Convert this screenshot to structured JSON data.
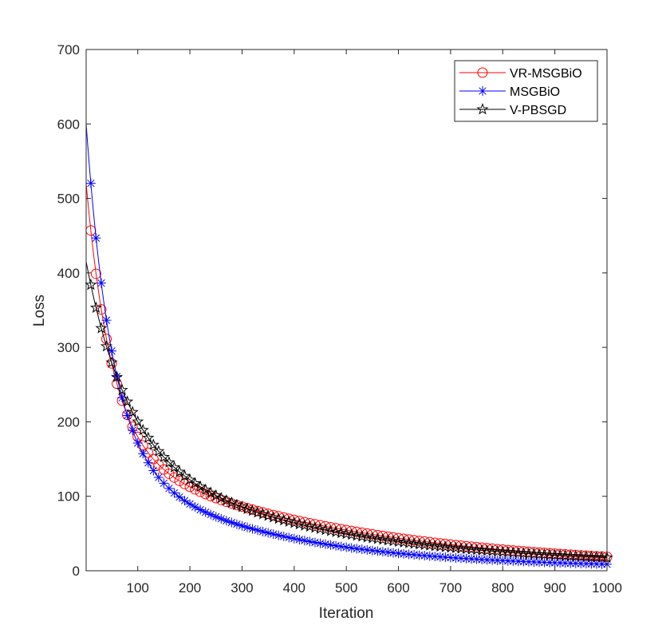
{
  "chart_data": {
    "type": "line",
    "title": "",
    "xlabel": "Iteration",
    "ylabel": "Loss",
    "xlim": [
      1,
      1000
    ],
    "ylim": [
      0,
      700
    ],
    "xticks": [
      100,
      200,
      300,
      400,
      500,
      600,
      700,
      800,
      900,
      1000
    ],
    "yticks": [
      0,
      100,
      200,
      300,
      400,
      500,
      600,
      700
    ],
    "grid": false,
    "legend_position": "top-right",
    "series": [
      {
        "name": "VR-MSGBiO",
        "color": "#ff0000",
        "marker": "circle",
        "start": 520,
        "decay_a": 0.0206,
        "decay_b": 0.0023,
        "weight": 0.68,
        "floor": 2
      },
      {
        "name": "MSGBiO",
        "color": "#0000ff",
        "marker": "asterisk",
        "start": 600,
        "decay_a": 0.0208,
        "decay_b": 0.0035,
        "weight": 0.735,
        "floor": 4
      },
      {
        "name": "V-PBSGD",
        "color": "#000000",
        "marker": "star",
        "start": 415,
        "decay_a": 0.0135,
        "decay_b": 0.0029,
        "weight": 0.57,
        "floor": 8
      }
    ]
  }
}
